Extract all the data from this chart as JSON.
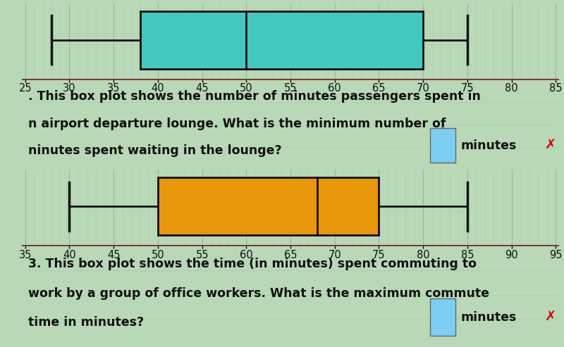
{
  "plot1": {
    "whisker_min": 28,
    "q1": 38,
    "median": 50,
    "q3": 70,
    "whisker_max": 75,
    "axis_min": 25,
    "axis_max": 85,
    "axis_step": 5,
    "box_color": "#44c8c0",
    "edge_color": "#111111",
    "label1": ". This box plot shows the number of minutes passengers spent in",
    "label2": "n airport departure lounge. What is the minimum number of",
    "label3": "ninutes spent waiting in the lounge?",
    "answer_box_color": "#7ecef4"
  },
  "plot2": {
    "whisker_min": 40,
    "q1": 50,
    "median": 68,
    "q3": 75,
    "whisker_max": 85,
    "axis_min": 35,
    "axis_max": 95,
    "axis_step": 5,
    "box_color": "#e8960a",
    "edge_color": "#111111",
    "label1": "3. This box plot shows the time (in minutes) spent commuting to",
    "label2": "work by a group of office workers. What is the maximum commute",
    "label3": "time in minutes?",
    "answer_box_color": "#7ecef4"
  },
  "bg_color": "#b8d8b8",
  "grid_major_color": "#98b898",
  "grid_minor_color": "#a8c8a8",
  "text_color": "#111111",
  "answer_label": "minutes",
  "font_size_text": 12.5,
  "font_size_axis": 10.5,
  "separator_color": "#cc4444"
}
